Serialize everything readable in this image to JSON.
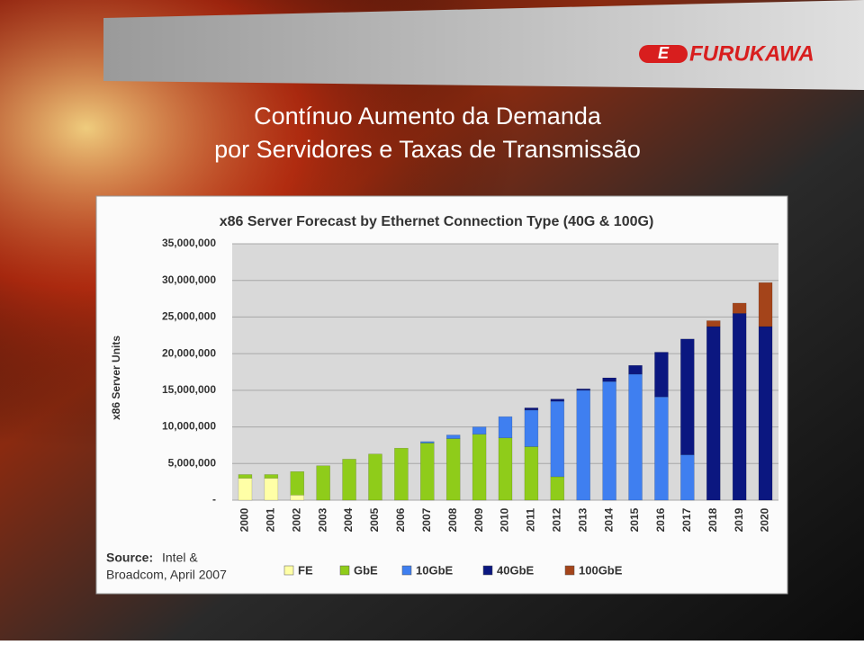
{
  "slide": {
    "logo_mark": "E",
    "logo": "FURUKAWA",
    "title_lines": [
      "Contínuo Aumento da Demanda",
      "por Servidores e Taxas de Transmissão"
    ]
  },
  "chart_data": {
    "type": "stacked_bar",
    "title": "x86 Server Forecast by Ethernet Connection Type (40G & 100G)",
    "y_label": "x86 Server Units",
    "source_label": "Source:",
    "source_lines": [
      "Intel &",
      "Broadcom, April 2007"
    ],
    "categories": [
      "2000",
      "2001",
      "2002",
      "2003",
      "2004",
      "2005",
      "2006",
      "2007",
      "2008",
      "2009",
      "2010",
      "2011",
      "2012",
      "2013",
      "2014",
      "2015",
      "2016",
      "2017",
      "2018",
      "2019",
      "2020"
    ],
    "series": [
      {
        "name": "FE",
        "color": "#ffffa6",
        "values": [
          3000000,
          3000000,
          700000,
          0,
          0,
          0,
          0,
          0,
          0,
          0,
          0,
          0,
          0,
          0,
          0,
          0,
          0,
          0,
          0,
          0,
          0
        ]
      },
      {
        "name": "GbE",
        "color": "#8fcc1a",
        "values": [
          500000,
          500000,
          3200000,
          4700000,
          5600000,
          6300000,
          7100000,
          7800000,
          8400000,
          9000000,
          8500000,
          7300000,
          3200000,
          0,
          0,
          0,
          0,
          0,
          0,
          0,
          0
        ]
      },
      {
        "name": "10GbE",
        "color": "#3f7ff0",
        "values": [
          0,
          0,
          0,
          0,
          0,
          0,
          0,
          200000,
          500000,
          1000000,
          2900000,
          5000000,
          10300000,
          15000000,
          16200000,
          17200000,
          14100000,
          6200000,
          0,
          0,
          0
        ]
      },
      {
        "name": "40GbE",
        "color": "#0b1780",
        "values": [
          0,
          0,
          0,
          0,
          0,
          0,
          0,
          0,
          0,
          0,
          0,
          300000,
          300000,
          200000,
          500000,
          1200000,
          6100000,
          15800000,
          23700000,
          25500000,
          23700000
        ]
      },
      {
        "name": "100GbE",
        "color": "#a4441a",
        "values": [
          0,
          0,
          0,
          0,
          0,
          0,
          0,
          0,
          0,
          0,
          0,
          0,
          0,
          0,
          0,
          0,
          0,
          0,
          800000,
          1400000,
          6000000
        ]
      }
    ],
    "ylim": [
      0,
      35000000
    ],
    "yticks": [
      {
        "value": 0,
        "label": "-"
      },
      {
        "value": 5000000,
        "label": "5,000,000"
      },
      {
        "value": 10000000,
        "label": "10,000,000"
      },
      {
        "value": 15000000,
        "label": "15,000,000"
      },
      {
        "value": 20000000,
        "label": "20,000,000"
      },
      {
        "value": 25000000,
        "label": "25,000,000"
      },
      {
        "value": 30000000,
        "label": "30,000,000"
      },
      {
        "value": 35000000,
        "label": "35,000,000"
      }
    ],
    "grid": true
  }
}
